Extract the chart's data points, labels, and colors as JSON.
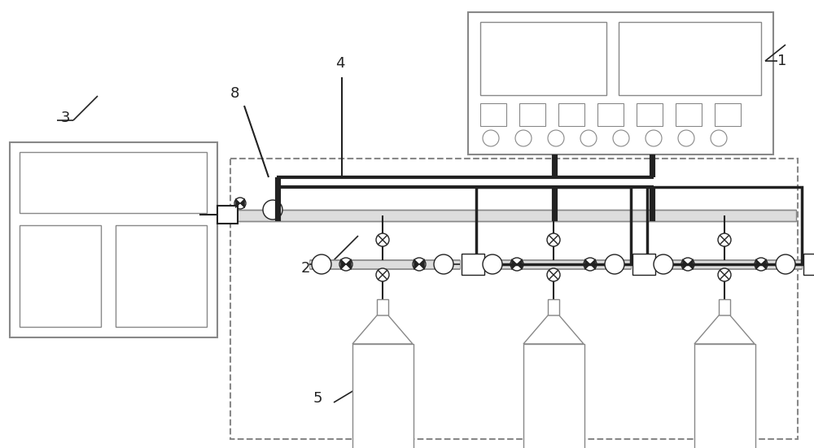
{
  "bg_color": "#ffffff",
  "lc": "#222222",
  "gc": "#888888",
  "label_1": "1",
  "label_2": "2",
  "label_3": "3",
  "label_4": "4",
  "label_5": "5",
  "label_8": "8",
  "fs": 13,
  "figw": 10.0,
  "figh": 5.51,
  "dpi": 100
}
